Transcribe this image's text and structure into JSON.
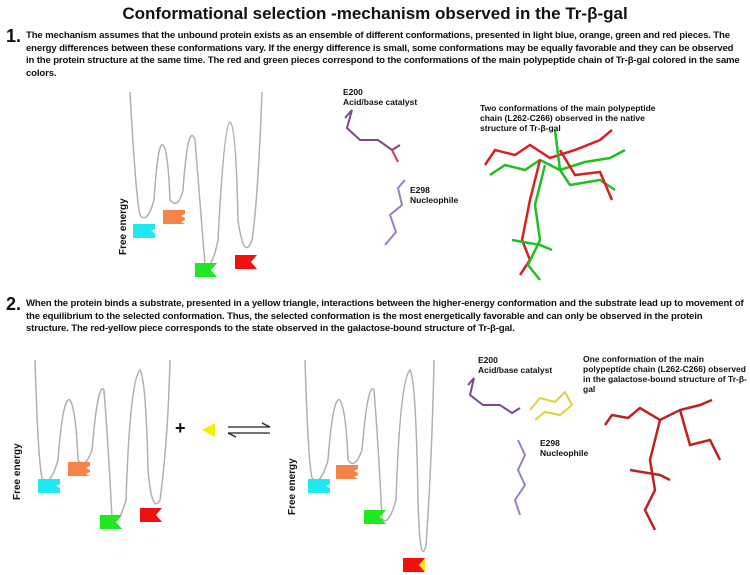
{
  "title": "Conformational selection -mechanism observed in the Tr-β-gal",
  "section1": {
    "number": "1.",
    "text": "The mechanism assumes that the unbound protein exists as an ensemble of different conformations, presented in light blue, orange, green and red pieces. The energy differences between these conformations vary.  If the energy difference is small, some conformations may be equally favorable and they can be observed in the protein structure at the same time. The red and green pieces correspond to the conformations of the main polypeptide chain of Tr-β-gal colored in the same colors.",
    "axis_label": "Free energy",
    "e200": "E200",
    "e200_role": "Acid/base catalyst",
    "e298": "E298",
    "e298_role": "Nucleophile",
    "caption": "Two conformations of the main polypeptide chain (L262-C266) observed  in the native structure of Tr-β-gal"
  },
  "section2": {
    "number": "2.",
    "text": "When the protein binds a substrate, presented in a yellow triangle, interactions between the higher-energy conformation and the substrate lead up to movement of the equilibrium to the selected conformation. Thus, the selected conformation is the most energetically favorable and can only be observed in the protein structure. The red-yellow piece corresponds to the state observed in the galactose-bound structure of Tr-β-gal.",
    "axis_label_left": "Free energy",
    "axis_label_right": "Free energy",
    "plus": "+",
    "e200": "E200",
    "e200_role": "Acid/base catalyst",
    "e298": "E298",
    "e298_role": "Nucleophile",
    "caption": "One conformation of the main polypeptide chain (L262-C266) observed  in the galactose-bound structure of Tr-β-gal"
  },
  "colors": {
    "light_blue": "#1ee8f0",
    "orange": "#f5834a",
    "green": "#22e822",
    "red": "#f01010",
    "yellow": "#f5f000",
    "curve": "#b0b0b0"
  }
}
